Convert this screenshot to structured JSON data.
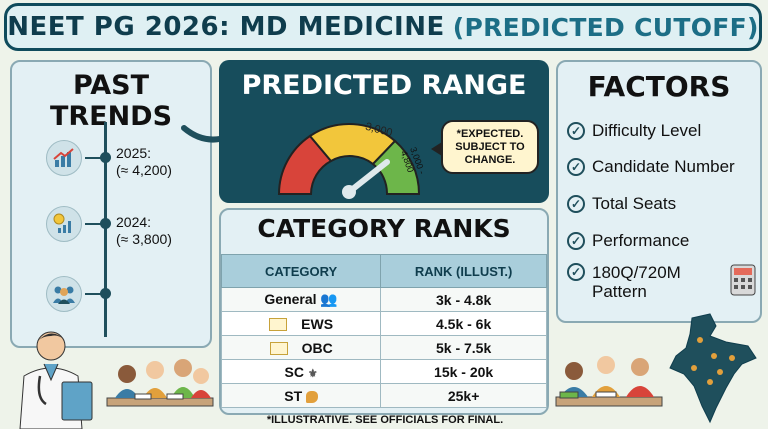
{
  "header": {
    "title_main": "NEET PG 2026: MD MEDICINE",
    "title_sub": "(PREDICTED CUTOFF)"
  },
  "past_trends": {
    "title": "PAST TRENDS",
    "items": [
      {
        "year": "2025:",
        "value": "(≈ 4,200)",
        "icon": "chart-growth-icon"
      },
      {
        "year": "2024:",
        "value": "(≈ 3,800)",
        "icon": "chart-coin-icon"
      },
      {
        "year": "",
        "value": "",
        "icon": "people-group-icon"
      }
    ]
  },
  "predicted_range": {
    "title": "PREDICTED RANGE",
    "gauge_marker": "3,000",
    "gauge_range": "3,000 - 4,800",
    "note": "*EXPECTED. SUBJECT TO CHANGE."
  },
  "category_ranks": {
    "title": "CATEGORY RANKS",
    "headers": [
      "CATEGORY",
      "RANK (ILLUST.)"
    ],
    "rows": [
      {
        "category": "General",
        "rank": "3k - 4.8k"
      },
      {
        "category": "EWS",
        "rank": "4.5k - 6k"
      },
      {
        "category": "OBC",
        "rank": "5k - 7.5k"
      },
      {
        "category": "SC",
        "rank": "15k - 20k"
      },
      {
        "category": "ST",
        "rank": "25k+"
      }
    ],
    "footnote": "*ILLUSTRATIVE. SEE OFFICIALS FOR FINAL."
  },
  "factors": {
    "title": "FACTORS",
    "items": [
      "Difficulty Level",
      "Candidate Number",
      "Total Seats",
      "Performance",
      "180Q/720M Pattern"
    ]
  },
  "colors": {
    "dark_teal": "#0f4b5c",
    "gauge_red": "#d8443a",
    "gauge_yellow": "#f2c63b",
    "gauge_green": "#6db64a"
  }
}
